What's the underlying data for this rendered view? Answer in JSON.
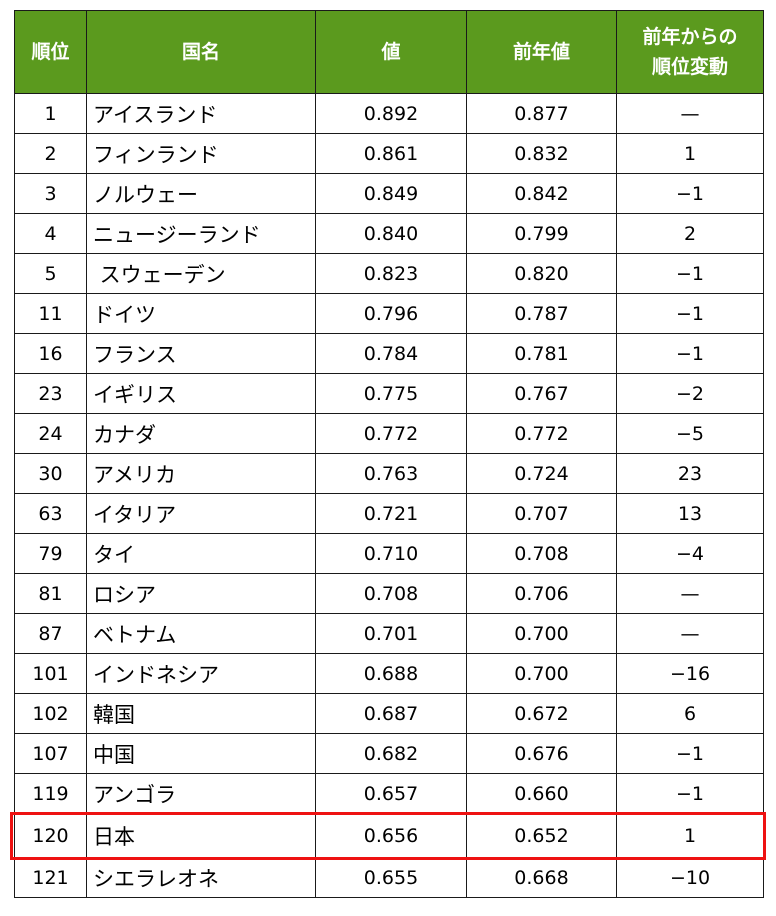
{
  "headers": {
    "rank": "順位",
    "country": "国名",
    "value": "値",
    "prev": "前年値",
    "change_line1": "前年からの",
    "change_line2": "順位変動"
  },
  "highlight_color": "#ee1111",
  "header_color": "#5b9a1e",
  "rows": [
    {
      "rank": "1",
      "country": "アイスランド",
      "value": "0.892",
      "prev": "0.877",
      "change": "—"
    },
    {
      "rank": "2",
      "country": "フィンランド",
      "value": "0.861",
      "prev": "0.832",
      "change": "1"
    },
    {
      "rank": "3",
      "country": "ノルウェー",
      "value": "0.849",
      "prev": "0.842",
      "change": "−1"
    },
    {
      "rank": "4",
      "country": "ニュージーランド",
      "value": "0.840",
      "prev": "0.799",
      "change": "2"
    },
    {
      "rank": "5",
      "country": " スウェーデン",
      "value": "0.823",
      "prev": "0.820",
      "change": "−1"
    },
    {
      "rank": "11",
      "country": "ドイツ",
      "value": "0.796",
      "prev": "0.787",
      "change": "−1"
    },
    {
      "rank": "16",
      "country": "フランス",
      "value": "0.784",
      "prev": "0.781",
      "change": "−1"
    },
    {
      "rank": "23",
      "country": "イギリス",
      "value": "0.775",
      "prev": "0.767",
      "change": "−2"
    },
    {
      "rank": "24",
      "country": "カナダ",
      "value": "0.772",
      "prev": "0.772",
      "change": "−5"
    },
    {
      "rank": "30",
      "country": "アメリカ",
      "value": "0.763",
      "prev": "0.724",
      "change": "23"
    },
    {
      "rank": "63",
      "country": "イタリア",
      "value": "0.721",
      "prev": "0.707",
      "change": "13"
    },
    {
      "rank": "79",
      "country": "タイ",
      "value": "0.710",
      "prev": "0.708",
      "change": "−4"
    },
    {
      "rank": "81",
      "country": "ロシア",
      "value": "0.708",
      "prev": "0.706",
      "change": "—"
    },
    {
      "rank": "87",
      "country": "ベトナム",
      "value": "0.701",
      "prev": "0.700",
      "change": "—"
    },
    {
      "rank": "101",
      "country": "インドネシア",
      "value": "0.688",
      "prev": "0.700",
      "change": "−16"
    },
    {
      "rank": "102",
      "country": "韓国",
      "value": "0.687",
      "prev": "0.672",
      "change": "6"
    },
    {
      "rank": "107",
      "country": "中国",
      "value": "0.682",
      "prev": "0.676",
      "change": "−1"
    },
    {
      "rank": "119",
      "country": "アンゴラ",
      "value": "0.657",
      "prev": "0.660",
      "change": "−1"
    },
    {
      "rank": "120",
      "country": "日本",
      "value": "0.656",
      "prev": "0.652",
      "change": "1",
      "highlighted": true
    },
    {
      "rank": "121",
      "country": "シエラレオネ",
      "value": "0.655",
      "prev": "0.668",
      "change": "−10"
    }
  ]
}
